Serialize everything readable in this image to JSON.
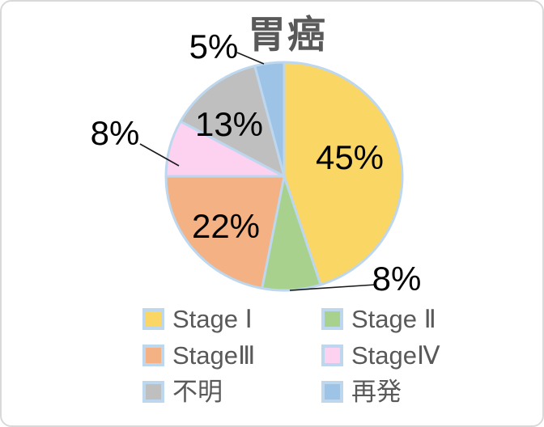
{
  "window": {
    "background": "#ffffff",
    "border_color": "#d9d9d9"
  },
  "chart_data": {
    "type": "pie",
    "title": "胃癌",
    "title_color": "#595959",
    "start_angle_deg": 0,
    "direction": "clockwise",
    "slice_border_color": "#BDD7EE",
    "data_label_color": "#000000",
    "leader_line_color": "#1a1a1a",
    "categories": [
      "Stage Ⅰ",
      "Stage Ⅱ",
      "StageⅢ",
      "StageⅣ",
      "不明",
      "再発"
    ],
    "values": [
      45,
      8,
      22,
      8,
      13,
      5
    ],
    "slices": [
      {
        "name": "stage-1",
        "label": "Stage Ⅰ",
        "value": 45,
        "pct_label": "45%",
        "color": "#FAD664"
      },
      {
        "name": "stage-2",
        "label": "Stage Ⅱ",
        "value": 8,
        "pct_label": "8%",
        "color": "#A9D18E"
      },
      {
        "name": "stage-3",
        "label": "StageⅢ",
        "value": 22,
        "pct_label": "22%",
        "color": "#F4B183"
      },
      {
        "name": "stage-4",
        "label": "StageⅣ",
        "value": 8,
        "pct_label": "8%",
        "color": "#FCD2F0"
      },
      {
        "name": "unknown",
        "label": "不明",
        "value": 13,
        "pct_label": "13%",
        "color": "#BFBFBF"
      },
      {
        "name": "recurrence",
        "label": "再発",
        "value": 5,
        "pct_label": "5%",
        "color": "#9DC3E6"
      }
    ],
    "legend": {
      "position": "bottom",
      "columns": 2,
      "text_color": "#595959"
    }
  }
}
